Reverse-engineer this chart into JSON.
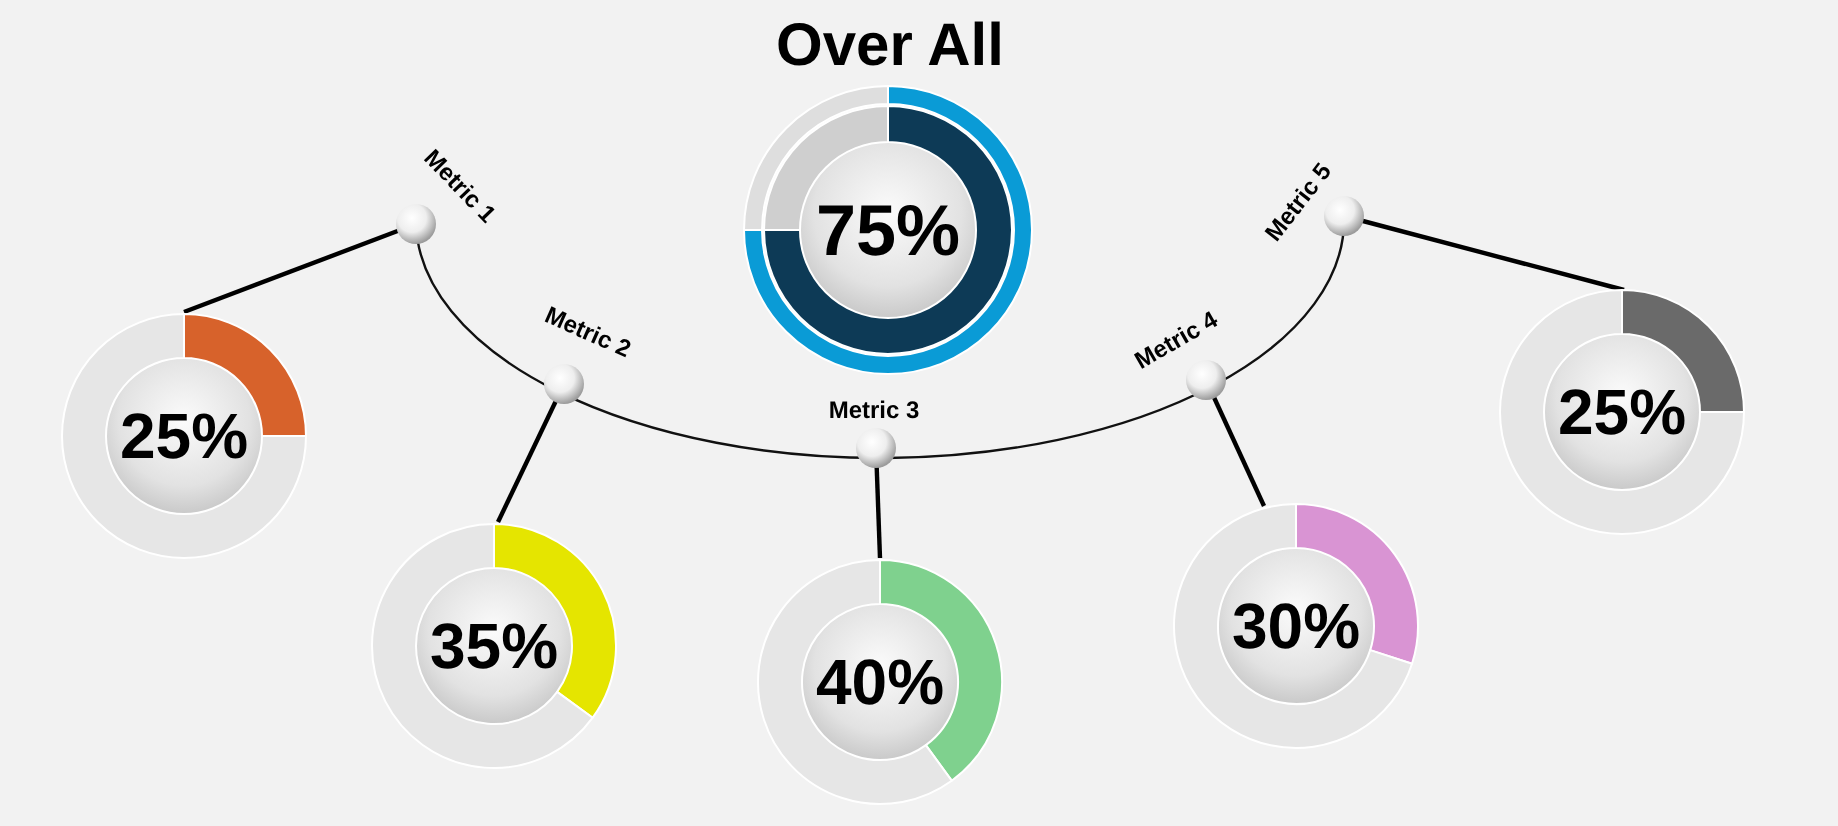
{
  "chart_data": [
    {
      "type": "donut",
      "title": "Over All",
      "categories": [
        null,
        null
      ],
      "series": [
        {
          "values": [
            75,
            25
          ],
          "colors": [
            "#0d3a56",
            "#cfcfcf"
          ],
          "value_labels": [
            "75%",
            null
          ]
        },
        {
          "values": [
            75,
            25
          ],
          "colors": [
            "#0a9bd6",
            "#dedede"
          ]
        }
      ]
    },
    {
      "type": "donut",
      "title": "Metric 1",
      "categories": [
        null,
        null
      ],
      "values": [
        25,
        75
      ],
      "colors": [
        "#d7622b",
        "#e6e6e6"
      ],
      "value_labels": [
        "25%",
        null
      ]
    },
    {
      "type": "donut",
      "title": "Metric 2",
      "categories": [
        null,
        null
      ],
      "values": [
        35,
        65
      ],
      "colors": [
        "#e5e500",
        "#e6e6e6"
      ],
      "value_labels": [
        "35%",
        null
      ]
    },
    {
      "type": "donut",
      "title": "Metric 3",
      "categories": [
        null,
        null
      ],
      "values": [
        40,
        60
      ],
      "colors": [
        "#7fd18e",
        "#e6e6e6"
      ],
      "value_labels": [
        "40%",
        null
      ]
    },
    {
      "type": "donut",
      "title": "Metric 4",
      "categories": [
        null,
        null
      ],
      "values": [
        30,
        70
      ],
      "colors": [
        "#d994d3",
        "#e6e6e6"
      ],
      "value_labels": [
        "30%",
        null
      ]
    },
    {
      "type": "donut",
      "title": "Metric 5",
      "categories": [
        null,
        null
      ],
      "values": [
        25,
        75
      ],
      "colors": [
        "#6a6a6a",
        "#e6e6e6"
      ],
      "value_labels": [
        "25%",
        null
      ]
    }
  ]
}
